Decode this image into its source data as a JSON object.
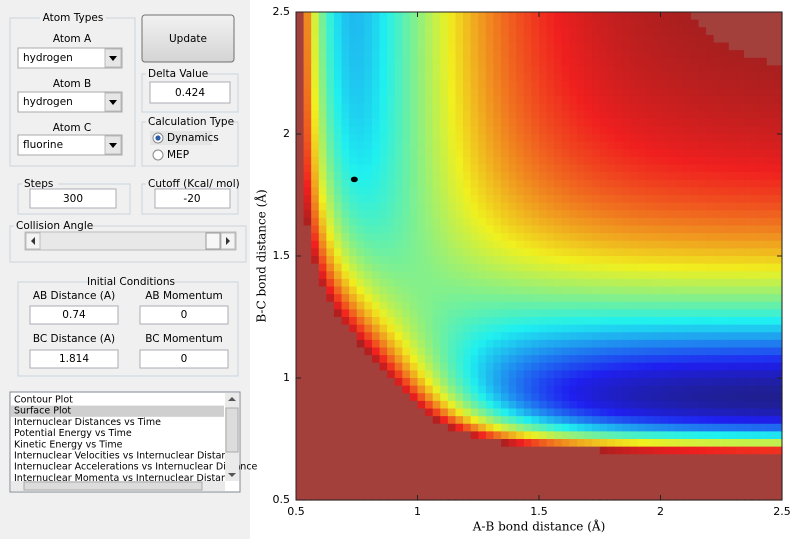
{
  "atom_types": {
    "title": "Atom Types",
    "atom_a": {
      "label": "Atom A",
      "value": "hydrogen"
    },
    "atom_b": {
      "label": "Atom B",
      "value": "hydrogen"
    },
    "atom_c": {
      "label": "Atom C",
      "value": "fluorine"
    }
  },
  "update_button": "Update",
  "delta_value": {
    "label": "Delta Value",
    "value": 0.424
  },
  "calculation_type": {
    "title": "Calculation Type",
    "options": [
      "Dynamics",
      "MEP"
    ],
    "selected": 0
  },
  "steps": {
    "label": "Steps",
    "value": 300
  },
  "cutoff": {
    "label": "Cutoff (Kcal/ mol)",
    "value": -20
  },
  "collision_angle": {
    "label": "Collision Angle"
  },
  "initial_conditions": {
    "title": "Initial Conditions",
    "ab_distance": {
      "label": "AB Distance (A)",
      "value": 0.74
    },
    "ab_momentum": {
      "label": "AB Momentum",
      "value": 0
    },
    "bc_distance": {
      "label": "BC Distance (A)",
      "value": 1.814
    },
    "bc_momentum": {
      "label": "BC Momentum",
      "value": 0
    }
  },
  "plot_list": {
    "items": [
      "Contour Plot",
      "Surface Plot",
      "Internuclear Distances vs Time",
      "Potential Energy vs Time",
      "Kinetic Energy vs Time",
      "Internuclear Velocities vs Internuclear Distance",
      "Internuclear Accelerations vs Internuclear Distance",
      "Internuclear Momenta vs Internuclear Distance"
    ],
    "selected": 1
  },
  "plot": {
    "type": "contour",
    "xlabel": "A-B bond distance (Å)",
    "ylabel": "B-C bond distance (Å)",
    "xlim": [
      0.5,
      2.5
    ],
    "ylim": [
      0.5,
      2.5
    ],
    "xticks": [
      0.5,
      1,
      1.5,
      2,
      2.5
    ],
    "yticks": [
      0.5,
      1,
      1.5,
      2,
      2.5
    ]
  }
}
